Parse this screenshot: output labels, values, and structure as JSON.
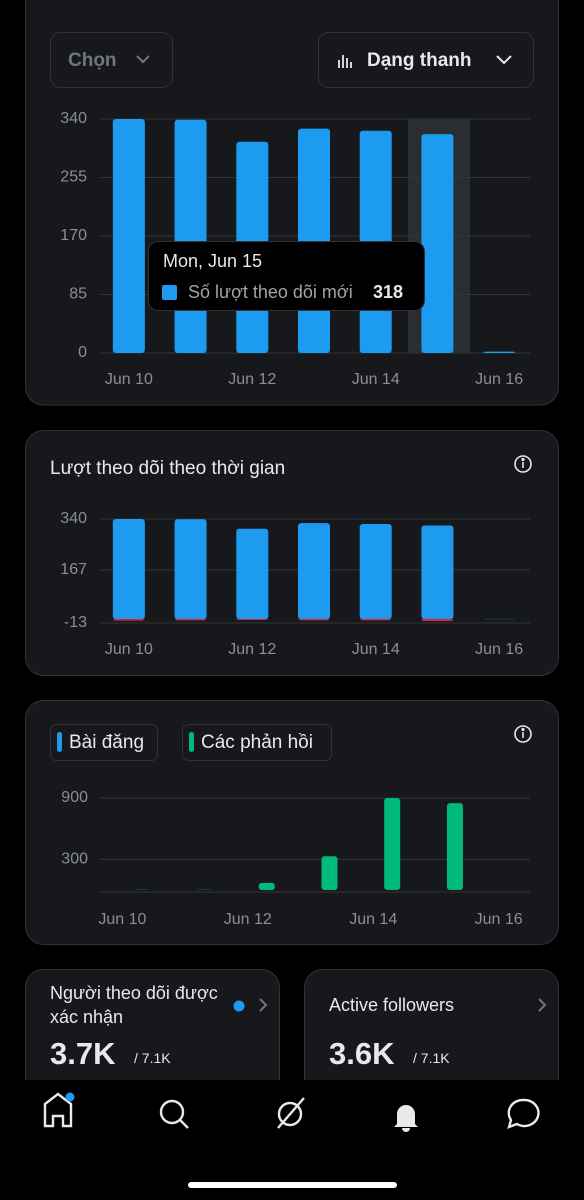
{
  "controls": {
    "select": "Chọn",
    "view": "Dạng thanh"
  },
  "chart_data": [
    {
      "type": "bar",
      "categories": [
        "Jun 10",
        null,
        "Jun 12",
        null,
        "Jun 14",
        null,
        "Jun 16"
      ],
      "series": [
        {
          "name": "Số lượt theo dõi mới",
          "color": "#1d9bf0",
          "values": [
            340,
            339,
            307,
            326,
            323,
            318,
            2
          ]
        }
      ],
      "ylim": [
        0,
        340
      ],
      "yticks": [
        0,
        85,
        170,
        255,
        340
      ],
      "grid": true,
      "tooltip": {
        "title": "Mon, Jun 15"
      }
    },
    {
      "type": "bar",
      "title": "Lượt theo dõi theo thời gian",
      "categories": [
        "Jun 10",
        null,
        "Jun 12",
        null,
        "Jun 14",
        null,
        "Jun 16"
      ],
      "series": [
        {
          "color": "#1d9bf0",
          "values": [
            340,
            339,
            307,
            326,
            323,
            318,
            1
          ]
        },
        {
          "color": "#f4212e",
          "values": [
            -5,
            -4,
            -3,
            -4,
            -4,
            -6,
            0
          ]
        }
      ],
      "ylim": [
        -13,
        340
      ],
      "yticks": [
        -13,
        167,
        340
      ],
      "grid": true
    },
    {
      "type": "bar",
      "categories": [
        "Jun 10",
        null,
        "Jun 12",
        null,
        "Jun 14",
        null,
        "Jun 16"
      ],
      "series": [
        {
          "name": "Bài đăng",
          "color": "#1d9bf0",
          "values": [
            0,
            0,
            0,
            0,
            0,
            0,
            0
          ]
        },
        {
          "name": "Các phản hồi",
          "color": "#00ba7c",
          "values": [
            2,
            3,
            70,
            330,
            900,
            850,
            0
          ]
        }
      ],
      "ylim": [
        0,
        900
      ],
      "yticks": [
        300,
        900
      ],
      "grid": true
    }
  ],
  "cards": [
    {
      "title": "Người theo dõi được xác nhận",
      "value": "3.7K",
      "total": "/ 7.1K"
    },
    {
      "title": "Active followers",
      "value": "3.6K",
      "total": "/ 7.1K"
    }
  ]
}
